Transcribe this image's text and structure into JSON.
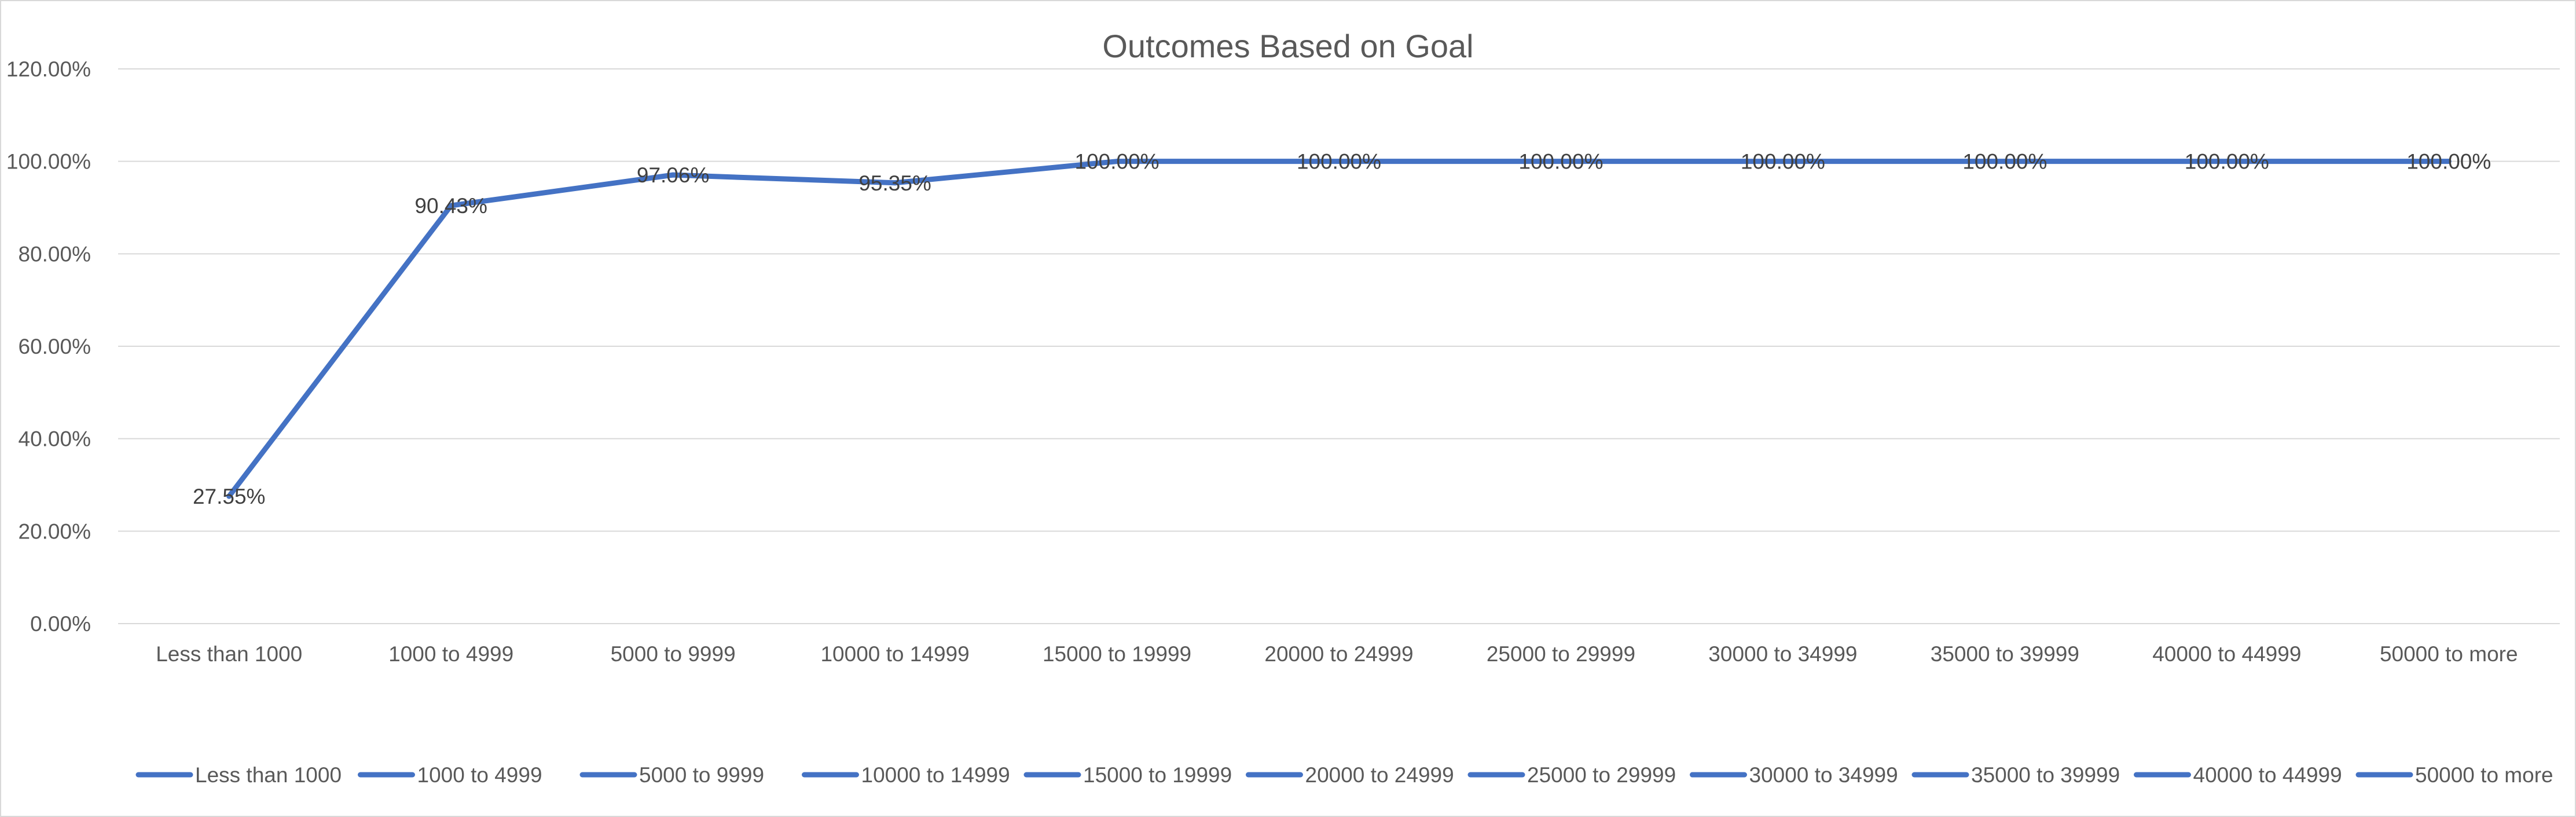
{
  "chart_data": {
    "type": "line",
    "title": "Outcomes Based on Goal",
    "xlabel": "",
    "ylabel": "",
    "categories": [
      "Less than 1000",
      "1000 to 4999",
      "5000 to 9999",
      "10000 to 14999",
      "15000 to 19999",
      "20000 to 24999",
      "25000 to 29999",
      "30000 to 34999",
      "35000 to 39999",
      "40000 to 44999",
      "50000 to more"
    ],
    "series": [
      {
        "values": [
          27.55,
          90.43,
          97.06,
          95.35,
          100.0,
          100.0,
          100.0,
          100.0,
          100.0,
          100.0,
          100.0
        ],
        "color": "#4472c4"
      }
    ],
    "data_labels": [
      "27.55%",
      "90.43%",
      "97.06%",
      "95.35%",
      "100.00%",
      "100.00%",
      "100.00%",
      "100.00%",
      "100.00%",
      "100.00%",
      "100.00%"
    ],
    "y_ticks": [
      "0.00%",
      "20.00%",
      "40.00%",
      "60.00%",
      "80.00%",
      "100.00%",
      "120.00%"
    ],
    "ylim": [
      0,
      120
    ],
    "y_tick_step": 20,
    "grid": true,
    "legend": {
      "position": "bottom",
      "entries": [
        "Less than 1000",
        "1000 to 4999",
        "5000 to 9999",
        "10000 to 14999",
        "15000 to 19999",
        "20000 to 24999",
        "25000 to 29999",
        "30000 to 34999",
        "35000 to 39999",
        "40000 to 44999",
        "50000 to more"
      ]
    },
    "gridline_color": "#d9d9d9",
    "text_color": "#595959"
  }
}
